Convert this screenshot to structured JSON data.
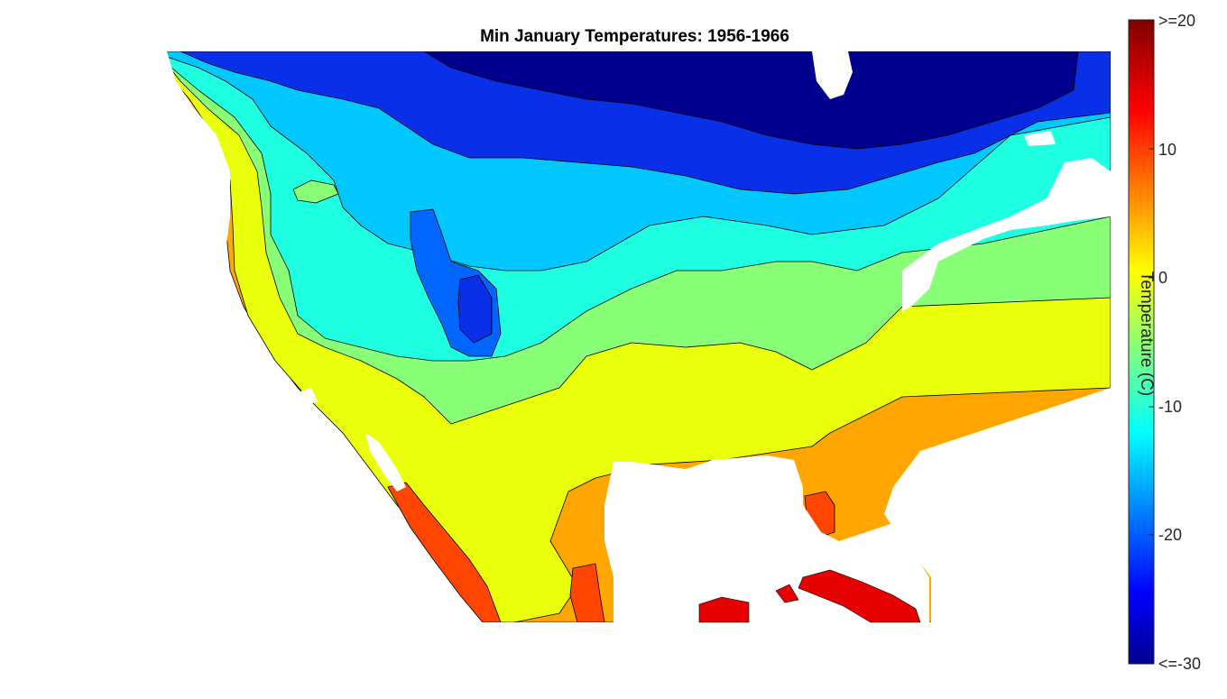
{
  "map": {
    "title": "Min January Temperatures: 1956-1966",
    "variable": "minimum January temperature",
    "colormap": "jet"
  },
  "colorbar": {
    "label": "Temperature (C)",
    "range": [
      -30,
      20
    ],
    "ticks": [
      {
        "value": 20,
        "label": ">=20"
      },
      {
        "value": 10,
        "label": "10"
      },
      {
        "value": 0,
        "label": "0"
      },
      {
        "value": -10,
        "label": "-10"
      },
      {
        "value": -20,
        "label": "-20"
      },
      {
        "value": -30,
        "label": "<=-30"
      }
    ]
  },
  "colors": {
    "dark_blue": "#00008f",
    "blue": "#0a2fe8",
    "mid_blue": "#0066ff",
    "sky": "#00c8ff",
    "cyan": "#1dffe0",
    "green": "#88ff77",
    "yellow": "#eaff0a",
    "orange": "#ffa700",
    "red_orange": "#ff4500",
    "red": "#e60000"
  }
}
